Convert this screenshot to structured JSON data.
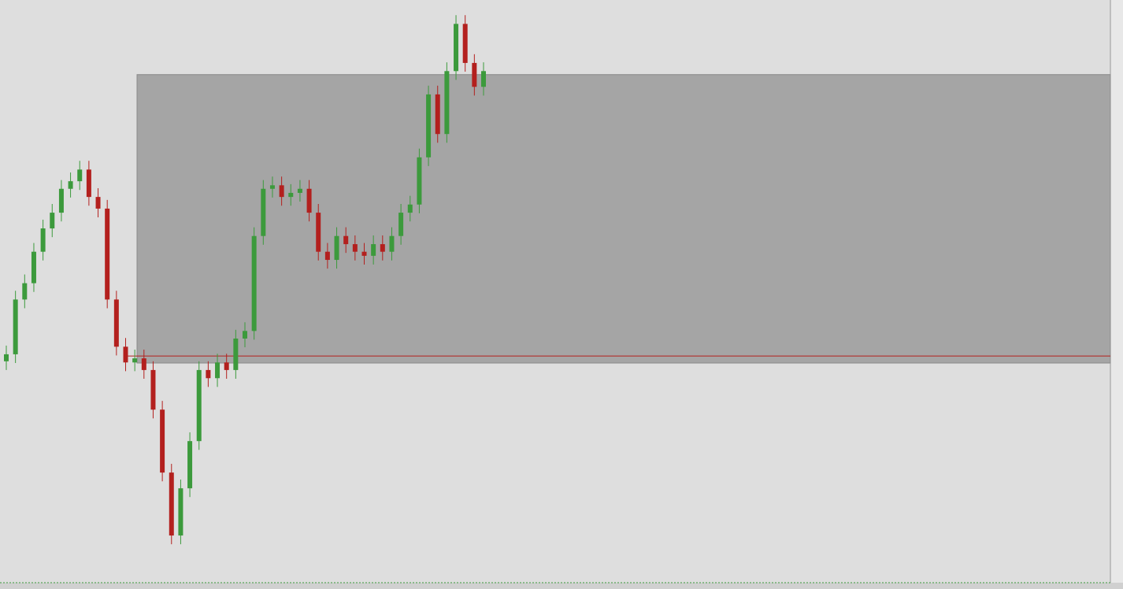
{
  "chart_data": {
    "type": "candlestick",
    "ylim": [
      0,
      100
    ],
    "up_color": "#3c9a3c",
    "down_color": "#b3201e",
    "zone": {
      "top": 87.2,
      "bottom": 37.7,
      "color": "#a5a5a5"
    },
    "level": {
      "value": 38.9,
      "color": "#b3201e"
    },
    "open": [
      38,
      39.2,
      48.6,
      51.4,
      56.8,
      60.8,
      63.5,
      67.6,
      68.9,
      70.9,
      66.2,
      64.2,
      48.6,
      40.5,
      37.8,
      38.5,
      36.5,
      29.7,
      18.9,
      8.1,
      16.2,
      24.3,
      36.5,
      35.1,
      37.8,
      36.5,
      41.9,
      43.2,
      59.5,
      67.6,
      68.2,
      66.2,
      66.9,
      67.6,
      63.5,
      56.8,
      55.4,
      59.5,
      58.1,
      56.8,
      56.1,
      58.1,
      56.8,
      59.5,
      63.5,
      64.9,
      73.0,
      83.8,
      77.0,
      87.8,
      95.9,
      89.2,
      85.1
    ],
    "high": [
      40.7,
      50.1,
      52.9,
      58.3,
      62.3,
      65.0,
      69.1,
      70.4,
      72.4,
      72.4,
      67.7,
      65.7,
      50.1,
      42.0,
      40.0,
      40.0,
      38.0,
      31.2,
      20.4,
      17.7,
      25.8,
      38.0,
      38.0,
      39.3,
      39.3,
      43.4,
      44.7,
      61.0,
      69.1,
      69.7,
      69.7,
      68.4,
      69.1,
      69.1,
      65.0,
      58.3,
      61.0,
      61.0,
      59.6,
      58.3,
      59.6,
      59.6,
      61.0,
      65.0,
      66.4,
      74.5,
      85.3,
      85.3,
      89.3,
      97.4,
      97.4,
      90.7,
      89.3
    ],
    "low": [
      36.5,
      37.7,
      47.1,
      49.9,
      55.3,
      59.3,
      62.0,
      66.1,
      67.4,
      64.7,
      62.7,
      47.1,
      39.0,
      36.3,
      36.3,
      35.0,
      28.2,
      17.4,
      6.6,
      6.6,
      14.7,
      22.8,
      33.6,
      33.6,
      35.0,
      35.0,
      40.4,
      41.7,
      58.0,
      66.1,
      64.7,
      64.7,
      65.4,
      62.0,
      55.3,
      53.9,
      53.9,
      56.6,
      55.3,
      54.6,
      54.6,
      55.3,
      55.3,
      58.0,
      62.0,
      63.4,
      71.5,
      75.5,
      75.5,
      86.3,
      87.7,
      83.6,
      83.6
    ],
    "close": [
      39.2,
      48.6,
      51.4,
      56.8,
      60.8,
      63.5,
      67.6,
      68.9,
      70.9,
      66.2,
      64.2,
      48.6,
      40.5,
      37.8,
      38.5,
      36.5,
      29.7,
      18.9,
      8.1,
      16.2,
      24.3,
      36.5,
      35.1,
      37.8,
      36.5,
      41.9,
      43.2,
      59.5,
      67.6,
      68.2,
      66.2,
      66.9,
      67.6,
      63.5,
      56.8,
      55.4,
      59.5,
      58.1,
      56.8,
      56.1,
      58.1,
      56.8,
      59.5,
      63.5,
      64.9,
      73.0,
      83.8,
      77.0,
      87.8,
      95.9,
      89.2,
      85.1,
      87.8
    ]
  }
}
